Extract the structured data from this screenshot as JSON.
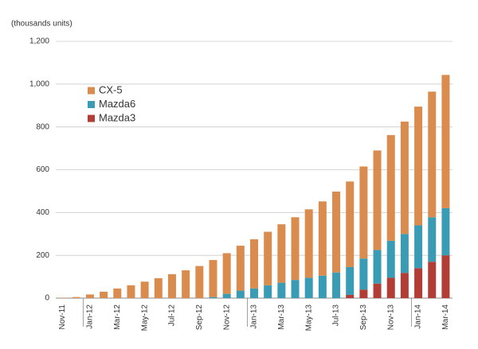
{
  "chart_data": {
    "type": "stacked_bar",
    "ylabel": "(thousands units)",
    "categories": [
      "Nov-11",
      null,
      "Jan-12",
      null,
      "Mar-12",
      null,
      "May-12",
      null,
      "Jul-12",
      null,
      "Sep-12",
      null,
      "Nov-12",
      null,
      "Jan-13",
      null,
      "Mar-13",
      null,
      "May-13",
      null,
      "Jul-13",
      null,
      "Sep-13",
      null,
      "Nov-13",
      null,
      "Jan-14",
      null,
      "Mar-14"
    ],
    "series": [
      {
        "name": "CX-5",
        "color": "#d98c4e",
        "values": [
          2,
          5,
          17,
          30,
          45,
          60,
          77,
          93,
          112,
          130,
          150,
          173,
          190,
          210,
          230,
          250,
          273,
          293,
          320,
          347,
          378,
          400,
          430,
          465,
          494,
          525,
          555,
          587,
          623
        ]
      },
      {
        "name": "Mazda6",
        "color": "#3a9cb4",
        "values": [
          0,
          0,
          0,
          0,
          0,
          0,
          0,
          0,
          0,
          0,
          0,
          5,
          20,
          35,
          45,
          60,
          72,
          85,
          95,
          105,
          120,
          130,
          145,
          157,
          173,
          182,
          200,
          208,
          220
        ]
      },
      {
        "name": "Mazda3",
        "color": "#b23c36",
        "values": [
          0,
          0,
          0,
          0,
          0,
          0,
          0,
          0,
          0,
          0,
          0,
          0,
          0,
          0,
          0,
          0,
          0,
          0,
          0,
          0,
          0,
          15,
          40,
          68,
          95,
          118,
          140,
          170,
          200
        ]
      }
    ],
    "ylim": [
      0,
      1200
    ],
    "yticks": [
      0,
      200,
      400,
      600,
      800,
      {
        "value": 1000,
        "label": "1,000"
      },
      {
        "value": 1200,
        "label": "1,200"
      }
    ],
    "grid": true
  }
}
